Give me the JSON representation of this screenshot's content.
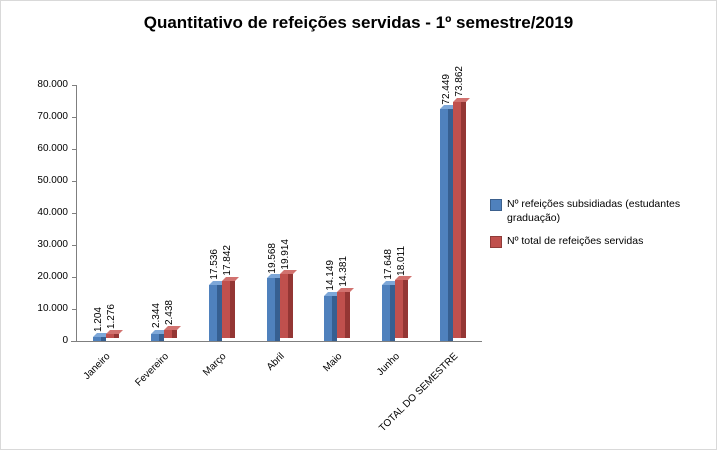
{
  "title": "Quantitativo de refeições servidas - 1º semestre/2019",
  "chart_data": {
    "type": "bar",
    "title": "Quantitativo de refeições servidas - 1º semestre/2019",
    "categories": [
      "Janeiro",
      "Fevereiro",
      "Março",
      "Abril",
      "Maio",
      "Junho",
      "TOTAL DO SEMESTRE"
    ],
    "series": [
      {
        "name": "Nº refeições subsidiadas (estudantes graduação)",
        "color": "#4F81BD",
        "values": [
          1204,
          2344,
          17536,
          19568,
          14149,
          17648,
          72449
        ],
        "labels": [
          "1.204",
          "2.344",
          "17.536",
          "19.568",
          "14.149",
          "17.648",
          "72.449"
        ]
      },
      {
        "name": "Nº total  de refeições servidas",
        "color": "#C0504D",
        "values": [
          1276,
          2438,
          17842,
          19914,
          14381,
          18011,
          73862
        ],
        "labels": [
          "1.276",
          "2.438",
          "17.842",
          "19.914",
          "14.381",
          "18.011",
          "73.862"
        ]
      }
    ],
    "xlabel": "",
    "ylabel": "",
    "ylim": [
      0,
      80000
    ],
    "ytick_step": 10000,
    "yticks": [
      "0",
      "10.000",
      "20.000",
      "30.000",
      "40.000",
      "50.000",
      "60.000",
      "70.000",
      "80.000"
    ],
    "grid": false,
    "legend_position": "right"
  }
}
